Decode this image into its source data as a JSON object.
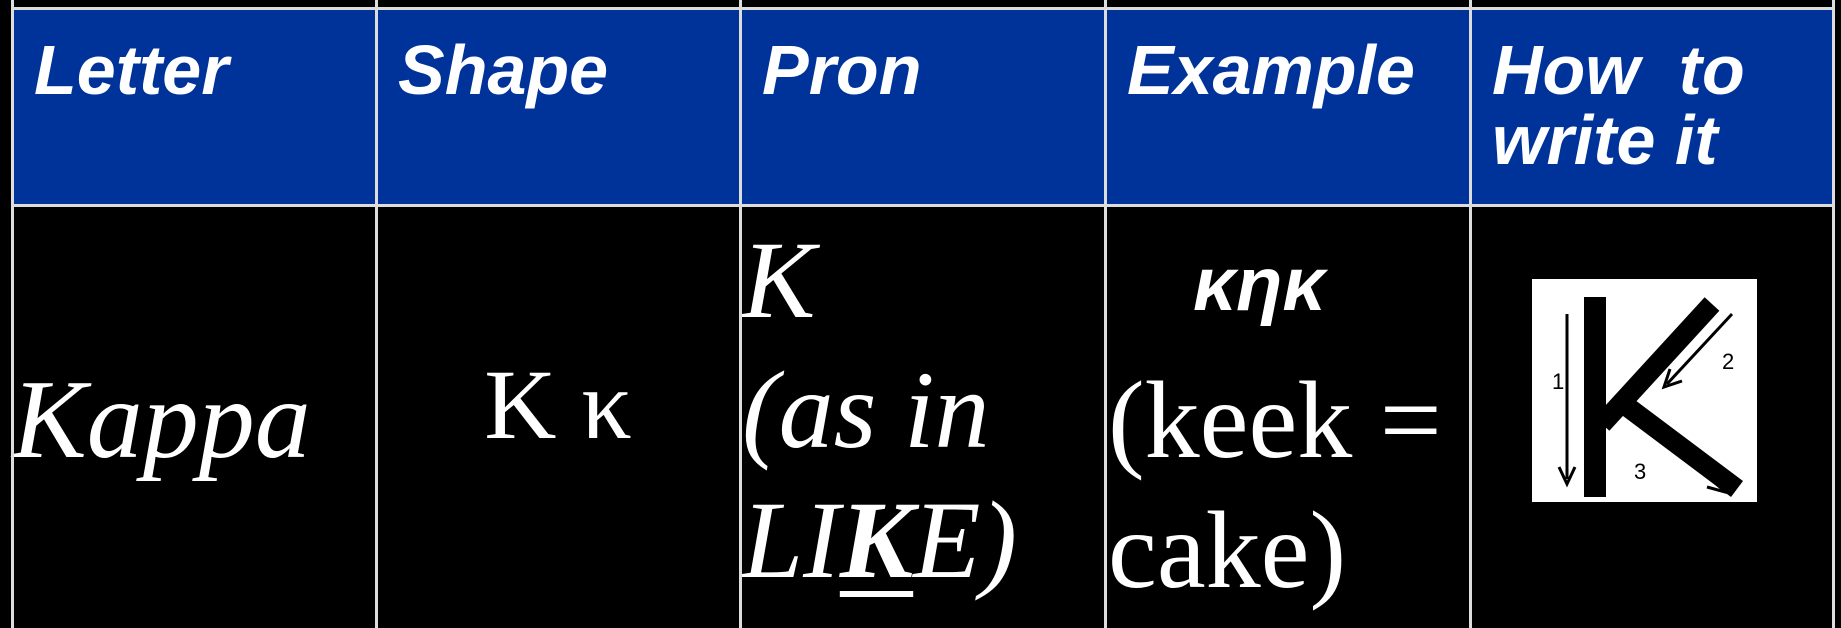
{
  "table": {
    "header": [
      "Letter",
      "Shape",
      "Pron",
      "Example",
      "How  to write it"
    ],
    "row": {
      "letter": "Kappa",
      "shape": "Κ κ",
      "pron": {
        "line1": "K",
        "line2": "(as in",
        "line3": [
          "LI",
          "K",
          "E)"
        ]
      },
      "example": {
        "word": "κηκ",
        "line1": "(keek =",
        "line2": "cake)"
      },
      "how_to_write": {
        "strokes": [
          "1",
          "2",
          "3"
        ]
      }
    }
  }
}
